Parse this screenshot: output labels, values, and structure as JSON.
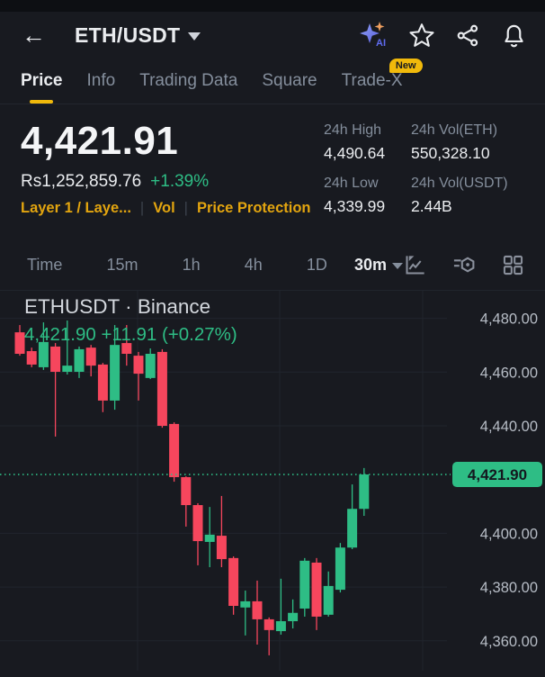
{
  "header": {
    "back_icon": "arrow-left",
    "title": "ETH/USDT",
    "icons": [
      "ai-assistant-icon",
      "star-icon",
      "share-icon",
      "bell-icon"
    ]
  },
  "tabs": {
    "items": [
      {
        "label": "Price",
        "active": true
      },
      {
        "label": "Info",
        "active": false
      },
      {
        "label": "Trading Data",
        "active": false
      },
      {
        "label": "Square",
        "active": false
      },
      {
        "label": "Trade-X",
        "active": false,
        "badge": "New"
      }
    ]
  },
  "price": {
    "last": "4,421.91",
    "converted": "Rs1,252,859.76",
    "change_pct": "+1.39%",
    "tags": [
      "Layer 1 / Laye...",
      "Vol",
      "Price Protection"
    ]
  },
  "stats": {
    "high_label": "24h High",
    "high_value": "4,490.64",
    "voleth_label": "24h Vol(ETH)",
    "voleth_value": "550,328.10",
    "low_label": "24h Low",
    "low_value": "4,339.99",
    "volusdt_label": "24h Vol(USDT)",
    "volusdt_value": "2.44B"
  },
  "toolbar": {
    "intervals": [
      "Time",
      "15m",
      "1h",
      "4h",
      "1D"
    ],
    "selected_interval": "30m",
    "icons": [
      "line-chart-icon",
      "indicator-settings-icon",
      "grid-layout-icon"
    ]
  },
  "colors": {
    "up": "#2ebd85",
    "down": "#f6465d",
    "accent": "#f0b90b",
    "grid": "#20242d",
    "axis_text": "#b7bdc6",
    "badge_text": "#14181f"
  },
  "chart_data": {
    "type": "candlestick",
    "title": "ETHUSDT · Binance",
    "ohlc_line": "4,421.90 +11.91 (+0.27%)",
    "interval": "30m",
    "last_price_value": 4421.9,
    "last_price_label": "4,421.90",
    "ylim": [
      4348,
      4490
    ],
    "legend_position": "top-left",
    "grid": true,
    "y_ticks": [
      {
        "v": 4480,
        "label": "4,480.00"
      },
      {
        "v": 4460,
        "label": "4,460.00"
      },
      {
        "v": 4440,
        "label": "4,440.00"
      },
      {
        "v": 4400,
        "label": "4,400.00"
      },
      {
        "v": 4380,
        "label": "4,380.00"
      },
      {
        "v": 4360,
        "label": "4,360.00"
      }
    ],
    "candles": [
      {
        "o": 4474.8,
        "h": 4477.5,
        "l": 4466.1,
        "c": 4466.8
      },
      {
        "o": 4467.8,
        "h": 4469.1,
        "l": 4461.8,
        "c": 4462.8
      },
      {
        "o": 4461.8,
        "h": 4478.5,
        "l": 4460.8,
        "c": 4471.2
      },
      {
        "o": 4469.5,
        "h": 4470.8,
        "l": 4436.0,
        "c": 4460.1
      },
      {
        "o": 4460.1,
        "h": 4479.2,
        "l": 4459.1,
        "c": 4462.4
      },
      {
        "o": 4460.1,
        "h": 4469.5,
        "l": 4457.8,
        "c": 4468.5
      },
      {
        "o": 4469.1,
        "h": 4470.1,
        "l": 4458.4,
        "c": 4462.4
      },
      {
        "o": 4462.8,
        "h": 4463.4,
        "l": 4445.1,
        "c": 4449.4
      },
      {
        "o": 4449.4,
        "h": 4477.5,
        "l": 4446.0,
        "c": 4470.1
      },
      {
        "o": 4470.8,
        "h": 4477.5,
        "l": 4462.4,
        "c": 4466.8
      },
      {
        "o": 4466.1,
        "h": 4467.5,
        "l": 4449.4,
        "c": 4459.4
      },
      {
        "o": 4457.8,
        "h": 4468.8,
        "l": 4457.4,
        "c": 4466.8
      },
      {
        "o": 4467.5,
        "h": 4468.5,
        "l": 4439.3,
        "c": 4440.0
      },
      {
        "o": 4440.7,
        "h": 4441.3,
        "l": 4419.2,
        "c": 4420.9
      },
      {
        "o": 4420.9,
        "h": 4421.2,
        "l": 4402.5,
        "c": 4410.5
      },
      {
        "o": 4410.5,
        "h": 4411.2,
        "l": 4388.1,
        "c": 4397.1
      },
      {
        "o": 4396.8,
        "h": 4409.8,
        "l": 4387.4,
        "c": 4399.5
      },
      {
        "o": 4399.1,
        "h": 4413.9,
        "l": 4387.4,
        "c": 4390.4
      },
      {
        "o": 4390.8,
        "h": 4391.4,
        "l": 4369.7,
        "c": 4373.0
      },
      {
        "o": 4372.4,
        "h": 4378.7,
        "l": 4362.0,
        "c": 4374.7
      },
      {
        "o": 4374.7,
        "h": 4382.4,
        "l": 4358.6,
        "c": 4368.0
      },
      {
        "o": 4368.0,
        "h": 4368.7,
        "l": 4354.6,
        "c": 4364.0
      },
      {
        "o": 4363.6,
        "h": 4383.1,
        "l": 4362.3,
        "c": 4367.3
      },
      {
        "o": 4367.3,
        "h": 4375.4,
        "l": 4364.6,
        "c": 4370.4
      },
      {
        "o": 4372.0,
        "h": 4390.8,
        "l": 4369.0,
        "c": 4389.8
      },
      {
        "o": 4389.1,
        "h": 4390.8,
        "l": 4364.0,
        "c": 4369.0
      },
      {
        "o": 4369.7,
        "h": 4385.8,
        "l": 4369.0,
        "c": 4380.4
      },
      {
        "o": 4379.0,
        "h": 4396.4,
        "l": 4378.0,
        "c": 4394.7
      },
      {
        "o": 4394.7,
        "h": 4418.2,
        "l": 4394.1,
        "c": 4409.1
      },
      {
        "o": 4409.1,
        "h": 4424.3,
        "l": 4406.5,
        "c": 4421.9
      }
    ]
  }
}
